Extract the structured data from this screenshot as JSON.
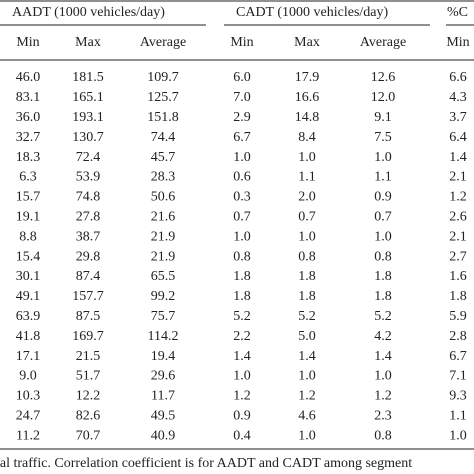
{
  "table": {
    "groups": [
      "AADT (1000 vehicles/day)",
      "CADT (1000 vehicles/day)",
      "%C"
    ],
    "columns": [
      "Min",
      "Max",
      "Average",
      "Min",
      "Max",
      "Average",
      "Min"
    ],
    "rows": [
      [
        "46.0",
        "181.5",
        "109.7",
        "6.0",
        "17.9",
        "12.6",
        "6.6"
      ],
      [
        "83.1",
        "165.1",
        "125.7",
        "7.0",
        "16.6",
        "12.0",
        "4.3"
      ],
      [
        "36.0",
        "193.1",
        "151.8",
        "2.9",
        "14.8",
        "9.1",
        "3.7"
      ],
      [
        "32.7",
        "130.7",
        "74.4",
        "6.7",
        "8.4",
        "7.5",
        "6.4"
      ],
      [
        "18.3",
        "72.4",
        "45.7",
        "1.0",
        "1.0",
        "1.0",
        "1.4"
      ],
      [
        "6.3",
        "53.9",
        "28.3",
        "0.6",
        "1.1",
        "1.1",
        "2.1"
      ],
      [
        "15.7",
        "74.8",
        "50.6",
        "0.3",
        "2.0",
        "0.9",
        "1.2"
      ],
      [
        "19.1",
        "27.8",
        "21.6",
        "0.7",
        "0.7",
        "0.7",
        "2.6"
      ],
      [
        "8.8",
        "38.7",
        "21.9",
        "1.0",
        "1.0",
        "1.0",
        "2.1"
      ],
      [
        "15.4",
        "29.8",
        "21.9",
        "0.8",
        "0.8",
        "0.8",
        "2.7"
      ],
      [
        "30.1",
        "87.4",
        "65.5",
        "1.8",
        "1.8",
        "1.8",
        "1.6"
      ],
      [
        "49.1",
        "157.7",
        "99.2",
        "1.8",
        "1.8",
        "1.8",
        "1.8"
      ],
      [
        "63.9",
        "87.5",
        "75.7",
        "5.2",
        "5.2",
        "5.2",
        "5.9"
      ],
      [
        "41.8",
        "169.7",
        "114.2",
        "2.2",
        "5.0",
        "4.2",
        "2.8"
      ],
      [
        "17.1",
        "21.5",
        "19.4",
        "1.4",
        "1.4",
        "1.4",
        "6.7"
      ],
      [
        "9.0",
        "51.7",
        "29.6",
        "1.0",
        "1.0",
        "1.0",
        "7.1"
      ],
      [
        "10.3",
        "12.2",
        "11.7",
        "1.2",
        "1.2",
        "1.2",
        "9.3"
      ],
      [
        "24.7",
        "82.6",
        "49.5",
        "0.9",
        "4.6",
        "2.3",
        "1.1"
      ],
      [
        "11.2",
        "70.7",
        "40.9",
        "0.4",
        "1.0",
        "0.8",
        "1.0"
      ]
    ]
  },
  "footer": "ial traffic. Correlation coefficient is for AADT and CADT among segment"
}
